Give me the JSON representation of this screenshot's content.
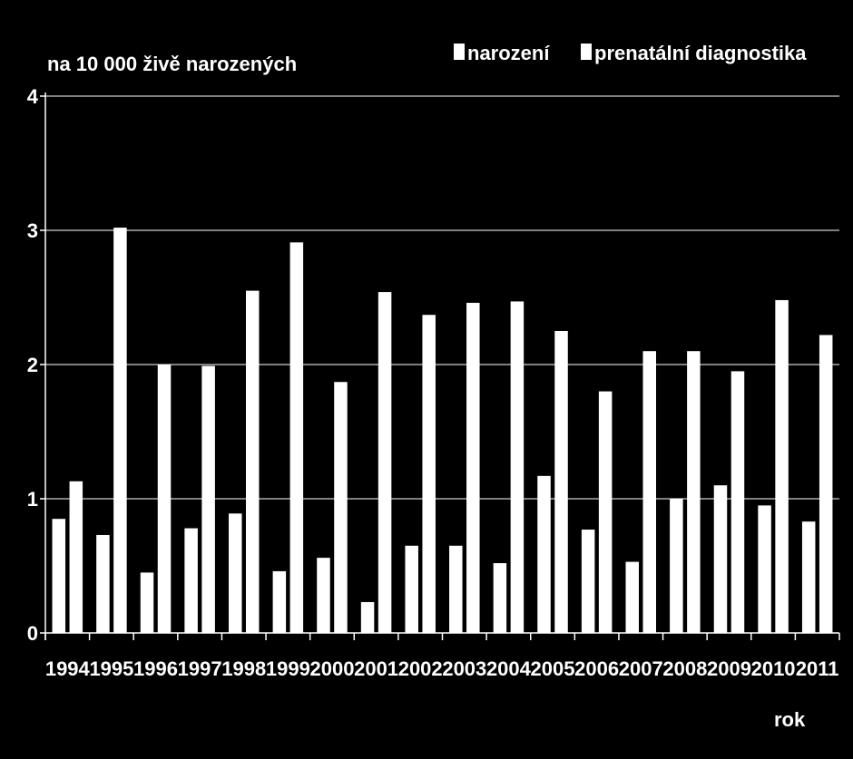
{
  "chart_data": {
    "type": "bar",
    "title": "",
    "ylabel": "na 10 000 živě narozených",
    "xlabel": "rok",
    "ylim": [
      0,
      4
    ],
    "yticks": [
      0,
      1,
      2,
      3,
      4
    ],
    "grid": true,
    "legend_position": "top-right",
    "colors": {
      "background": "#000000",
      "bars": "#ffffff",
      "grid": "#ffffff"
    },
    "categories": [
      "1994",
      "1995",
      "1996",
      "1997",
      "1998",
      "1999",
      "2000",
      "2001",
      "2002",
      "2003",
      "2004",
      "2005",
      "2006",
      "2007",
      "2008",
      "2009",
      "2010",
      "2011"
    ],
    "series": [
      {
        "name": "narození",
        "values": [
          0.85,
          0.73,
          0.45,
          0.78,
          0.89,
          0.46,
          0.56,
          0.23,
          0.65,
          0.65,
          0.52,
          1.17,
          0.77,
          0.53,
          1.0,
          1.1,
          0.95,
          0.83
        ]
      },
      {
        "name": "prenatální diagnostika",
        "values": [
          1.13,
          3.02,
          2.0,
          1.99,
          2.55,
          2.91,
          1.87,
          2.54,
          2.37,
          2.46,
          2.47,
          2.25,
          1.8,
          2.1,
          2.1,
          1.95,
          2.48,
          2.22
        ]
      }
    ]
  }
}
